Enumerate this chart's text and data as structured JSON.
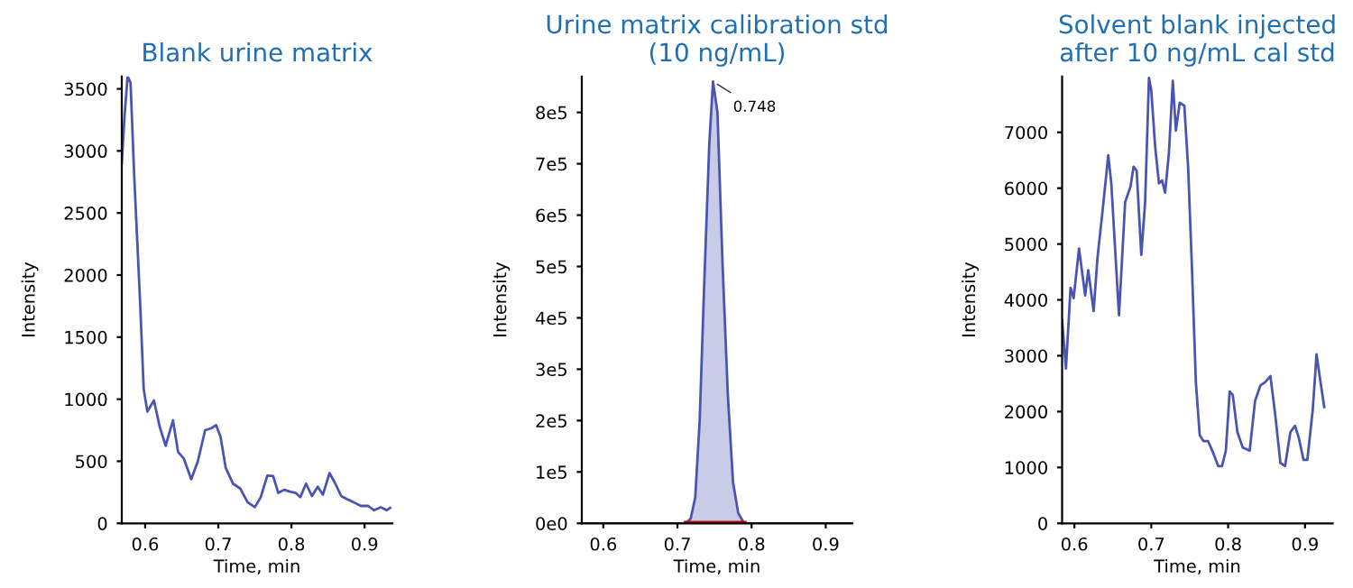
{
  "chart_data": [
    {
      "type": "line",
      "title": "Blank urine matrix",
      "xlabel": "Time, min",
      "ylabel": "Intensity",
      "xlim": [
        0.568,
        0.938
      ],
      "ylim": [
        0,
        3600
      ],
      "xticks": [
        0.6,
        0.7,
        0.8,
        0.9
      ],
      "yticks": [
        0,
        500,
        1000,
        1500,
        2000,
        2500,
        3000,
        3500
      ],
      "grid": false,
      "legend": false,
      "series": [
        {
          "color": "#4a55b0",
          "x": [
            0.568,
            0.572,
            0.576,
            0.58,
            0.585,
            0.593,
            0.598,
            0.603,
            0.612,
            0.62,
            0.628,
            0.638,
            0.645,
            0.653,
            0.663,
            0.672,
            0.682,
            0.69,
            0.697,
            0.703,
            0.71,
            0.72,
            0.73,
            0.74,
            0.75,
            0.758,
            0.767,
            0.775,
            0.782,
            0.79,
            0.798,
            0.806,
            0.812,
            0.82,
            0.828,
            0.836,
            0.843,
            0.852,
            0.86,
            0.868,
            0.876,
            0.885,
            0.895,
            0.905,
            0.913,
            0.922,
            0.93,
            0.935
          ],
          "values": [
            2900,
            3300,
            3600,
            3550,
            2800,
            1790,
            1080,
            900,
            990,
            775,
            625,
            830,
            575,
            520,
            355,
            500,
            750,
            765,
            790,
            700,
            450,
            320,
            280,
            170,
            130,
            210,
            385,
            380,
            245,
            270,
            255,
            245,
            210,
            320,
            220,
            295,
            230,
            405,
            320,
            220,
            195,
            170,
            140,
            140,
            105,
            130,
            105,
            125
          ]
        }
      ]
    },
    {
      "type": "area",
      "title": "Urine matrix calibration std\n(10 ng/mL)",
      "xlabel": "Time, min",
      "ylabel": "Intensity",
      "xlim": [
        0.571,
        0.936
      ],
      "ylim": [
        0,
        870000
      ],
      "xticks": [
        0.6,
        0.7,
        0.8,
        0.9
      ],
      "yticks": [
        {
          "value": 0,
          "label": "0e0"
        },
        {
          "value": 100000,
          "label": "1e5"
        },
        {
          "value": 200000,
          "label": "2e5"
        },
        {
          "value": 300000,
          "label": "3e5"
        },
        {
          "value": 400000,
          "label": "4e5"
        },
        {
          "value": 500000,
          "label": "5e5"
        },
        {
          "value": 600000,
          "label": "6e5"
        },
        {
          "value": 700000,
          "label": "7e5"
        },
        {
          "value": 800000,
          "label": "8e5"
        }
      ],
      "grid": false,
      "legend": false,
      "annotations": [
        {
          "text": "0.748",
          "x": 0.748,
          "y": 860000
        }
      ],
      "series": [
        {
          "color": "#4a55b0",
          "x": [
            0.571,
            0.7,
            0.712,
            0.718,
            0.724,
            0.73,
            0.736,
            0.743,
            0.748,
            0.754,
            0.761,
            0.768,
            0.775,
            0.782,
            0.79,
            0.936
          ],
          "values": [
            0,
            0,
            0,
            10000,
            50000,
            200000,
            460000,
            740000,
            860000,
            800000,
            500000,
            250000,
            80000,
            20000,
            0,
            0
          ]
        },
        {
          "type": "line",
          "color": "#c00000",
          "x": [
            0.712,
            0.79
          ],
          "values": [
            0,
            0
          ]
        }
      ]
    },
    {
      "type": "line",
      "title": "Solvent blank injected\nafter 10 ng/mL cal std",
      "xlabel": "Time, min",
      "ylabel": "Intensity",
      "xlim": [
        0.584,
        0.936
      ],
      "ylim": [
        0,
        8000
      ],
      "xticks": [
        0.6,
        0.7,
        0.8,
        0.9
      ],
      "yticks": [
        0,
        1000,
        2000,
        3000,
        4000,
        5000,
        6000,
        7000
      ],
      "grid": false,
      "legend": false,
      "series": [
        {
          "color": "#4a55b0",
          "x": [
            0.584,
            0.589,
            0.595,
            0.599,
            0.606,
            0.614,
            0.618,
            0.625,
            0.63,
            0.637,
            0.644,
            0.648,
            0.658,
            0.666,
            0.673,
            0.677,
            0.681,
            0.687,
            0.692,
            0.697,
            0.7,
            0.705,
            0.71,
            0.714,
            0.718,
            0.723,
            0.728,
            0.732,
            0.737,
            0.743,
            0.748,
            0.753,
            0.758,
            0.763,
            0.768,
            0.774,
            0.781,
            0.787,
            0.792,
            0.797,
            0.802,
            0.806,
            0.812,
            0.819,
            0.828,
            0.835,
            0.842,
            0.848,
            0.855,
            0.861,
            0.868,
            0.874,
            0.881,
            0.887,
            0.892,
            0.898,
            0.903,
            0.91,
            0.915,
            0.919,
            0.925
          ],
          "values": [
            3640,
            2770,
            4215,
            4030,
            4920,
            4080,
            4530,
            3800,
            4750,
            5640,
            6590,
            6085,
            3725,
            5750,
            6030,
            6385,
            6310,
            4805,
            5750,
            7975,
            7750,
            6750,
            6085,
            6140,
            5920,
            6640,
            7920,
            7030,
            7530,
            7475,
            6360,
            4530,
            2525,
            1580,
            1470,
            1470,
            1245,
            1025,
            1025,
            1300,
            2360,
            2300,
            1635,
            1355,
            1300,
            2190,
            2470,
            2525,
            2635,
            1970,
            1080,
            1025,
            1635,
            1745,
            1525,
            1135,
            1135,
            2025,
            3025,
            2635,
            2080
          ]
        }
      ]
    }
  ]
}
